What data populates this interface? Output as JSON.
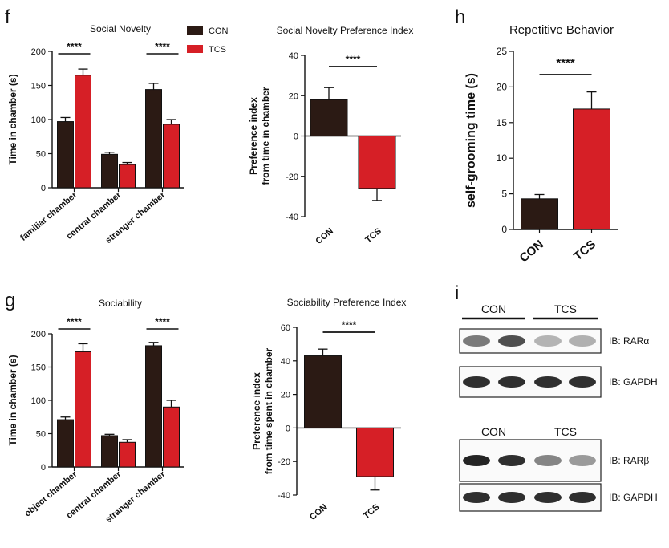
{
  "colors": {
    "con": "#2b1a14",
    "tcs": "#d61f26",
    "axis": "#111111"
  },
  "panels": {
    "f": "f",
    "g": "g",
    "h": "h",
    "i": "i"
  },
  "legend": {
    "con": "CON",
    "tcs": "TCS"
  },
  "chart_data": [
    {
      "id": "social_novelty",
      "type": "bar",
      "title": "Social Novelty",
      "ylabel": "Time in chamber (s)",
      "categories": [
        "familiar chamber",
        "central chamber",
        "stranger chamber"
      ],
      "ylim": [
        0,
        200
      ],
      "yticks": [
        0,
        50,
        100,
        150,
        200
      ],
      "series": [
        {
          "name": "CON",
          "values": [
            97,
            49,
            144
          ],
          "errors": [
            6,
            3,
            9
          ]
        },
        {
          "name": "TCS",
          "values": [
            165,
            34,
            93
          ],
          "errors": [
            9,
            3,
            7
          ]
        }
      ],
      "annotations": [
        {
          "text": "****",
          "category_index": 0
        },
        {
          "text": "****",
          "category_index": 2
        }
      ]
    },
    {
      "id": "social_novelty_pi",
      "type": "bar",
      "title": "Social Novelty Preference Index",
      "ylabel_lines": [
        "Preference index",
        "from time in chamber"
      ],
      "categories": [
        "CON",
        "TCS"
      ],
      "ylim": [
        -40,
        40
      ],
      "yticks": [
        -40,
        -20,
        0,
        20,
        40
      ],
      "values": [
        18,
        -26
      ],
      "errors": [
        6,
        6
      ],
      "annotations": [
        {
          "text": "****"
        }
      ]
    },
    {
      "id": "repetitive_behavior",
      "type": "bar",
      "title": "Repetitive Behavior",
      "ylabel": "self-grooming time (s)",
      "categories": [
        "CON",
        "TCS"
      ],
      "ylim": [
        0,
        25
      ],
      "yticks": [
        0,
        5,
        10,
        15,
        20,
        25
      ],
      "values": [
        4.3,
        16.9
      ],
      "errors": [
        0.6,
        2.4
      ],
      "annotations": [
        {
          "text": "****"
        }
      ]
    },
    {
      "id": "sociability",
      "type": "bar",
      "title": "Sociability",
      "ylabel": "Time in chamber (s)",
      "categories": [
        "object chamber",
        "central chamber",
        "stranger chamber"
      ],
      "ylim": [
        0,
        200
      ],
      "yticks": [
        0,
        50,
        100,
        150,
        200
      ],
      "series": [
        {
          "name": "CON",
          "values": [
            71,
            47,
            182
          ],
          "errors": [
            4,
            2,
            5
          ]
        },
        {
          "name": "TCS",
          "values": [
            173,
            37,
            90
          ],
          "errors": [
            12,
            4,
            10
          ]
        }
      ],
      "annotations": [
        {
          "text": "****",
          "category_index": 0
        },
        {
          "text": "****",
          "category_index": 2
        }
      ]
    },
    {
      "id": "sociability_pi",
      "type": "bar",
      "title": "Sociability Preference Index",
      "ylabel_lines": [
        "Preference index",
        "from time spent in chamber"
      ],
      "categories": [
        "CON",
        "TCS"
      ],
      "ylim": [
        -40,
        60
      ],
      "yticks": [
        -40,
        -20,
        0,
        20,
        40,
        60
      ],
      "values": [
        43,
        -29
      ],
      "errors": [
        4,
        8
      ],
      "annotations": [
        {
          "text": "****"
        }
      ]
    }
  ],
  "western_blot": {
    "blocks": [
      {
        "groups": [
          "CON",
          "TCS"
        ],
        "rows": [
          {
            "label": "IB: RARα",
            "intensities": [
              0.55,
              0.75,
              0.28,
              0.3
            ]
          },
          {
            "label": "IB: GAPDH",
            "intensities": [
              0.9,
              0.9,
              0.9,
              0.9
            ]
          }
        ]
      },
      {
        "groups": [
          "CON",
          "TCS"
        ],
        "rows": [
          {
            "label": "IB: RARβ",
            "intensities": [
              0.95,
              0.9,
              0.5,
              0.4
            ]
          },
          {
            "label": "IB: GAPDH",
            "intensities": [
              0.9,
              0.9,
              0.9,
              0.9
            ]
          }
        ]
      }
    ]
  }
}
